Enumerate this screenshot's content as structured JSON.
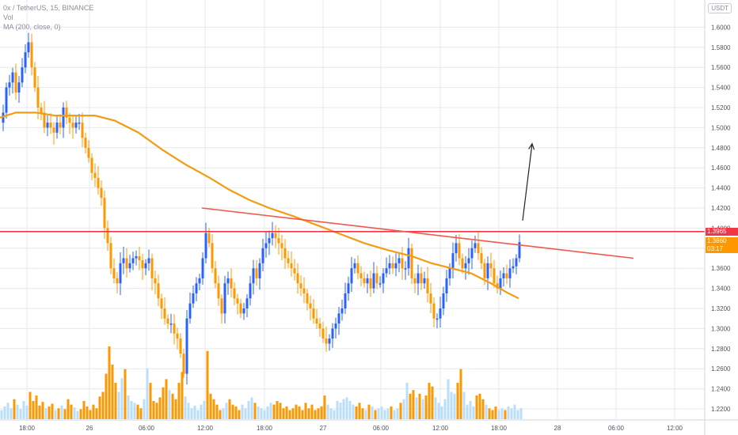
{
  "header": {
    "symbol_line": "0x / TetherUS, 15, BINANCE",
    "vol_label": "Vol",
    "ma_label": "MA (200, close, 0)"
  },
  "currency_badge": "USDT",
  "badges": {
    "resistance_price": "1.3965",
    "last_price": "1.3860",
    "countdown": "03:17"
  },
  "colors": {
    "up": "#2962ff",
    "down": "#ff9800",
    "ma": "#f39c12",
    "trend": "#f0584e",
    "resistance": "#f23645",
    "vol_up": "#bbdefb",
    "vol_down": "#ff9800",
    "grid": "#e6e8ec",
    "arrow": "#222222"
  },
  "chart_data": {
    "type": "candlestick",
    "y_ticks": [
      "1.2200",
      "1.2400",
      "1.2600",
      "1.2800",
      "1.3000",
      "1.3200",
      "1.3400",
      "1.3600",
      "1.3800",
      "1.4000",
      "1.4200",
      "1.4400",
      "1.4600",
      "1.4800",
      "1.5000",
      "1.5200",
      "1.5400",
      "1.5600",
      "1.5800",
      "1.6000"
    ],
    "ylim": [
      1.208,
      1.632
    ],
    "x_ticks": [
      "18:00",
      "26",
      "06:00",
      "12:00",
      "18:00",
      "27",
      "06:00",
      "12:00",
      "18:00",
      "28",
      "06:00",
      "12:00"
    ],
    "price_path": [
      [
        0,
        1.505
      ],
      [
        4,
        1.515
      ],
      [
        8,
        1.54
      ],
      [
        12,
        1.545
      ],
      [
        16,
        1.555
      ],
      [
        20,
        1.535
      ],
      [
        24,
        1.545
      ],
      [
        28,
        1.56
      ],
      [
        32,
        1.575
      ],
      [
        36,
        1.585
      ],
      [
        40,
        1.56
      ],
      [
        44,
        1.54
      ],
      [
        48,
        1.52
      ],
      [
        52,
        1.515
      ],
      [
        56,
        1.5
      ],
      [
        60,
        1.505
      ],
      [
        64,
        1.5
      ],
      [
        68,
        1.495
      ],
      [
        72,
        1.505
      ],
      [
        76,
        1.5
      ],
      [
        80,
        1.52
      ],
      [
        84,
        1.51
      ],
      [
        88,
        1.505
      ],
      [
        92,
        1.5
      ],
      [
        96,
        1.505
      ],
      [
        100,
        1.505
      ],
      [
        104,
        1.49
      ],
      [
        108,
        1.48
      ],
      [
        112,
        1.47
      ],
      [
        116,
        1.455
      ],
      [
        120,
        1.45
      ],
      [
        124,
        1.44
      ],
      [
        128,
        1.43
      ],
      [
        132,
        1.4
      ],
      [
        136,
        1.385
      ],
      [
        140,
        1.36
      ],
      [
        144,
        1.35
      ],
      [
        148,
        1.345
      ],
      [
        152,
        1.365
      ],
      [
        156,
        1.37
      ],
      [
        160,
        1.36
      ],
      [
        164,
        1.365
      ],
      [
        168,
        1.37
      ],
      [
        172,
        1.372
      ],
      [
        176,
        1.368
      ],
      [
        180,
        1.36
      ],
      [
        184,
        1.365
      ],
      [
        188,
        1.37
      ],
      [
        192,
        1.35
      ],
      [
        196,
        1.345
      ],
      [
        200,
        1.33
      ],
      [
        204,
        1.32
      ],
      [
        208,
        1.31
      ],
      [
        212,
        1.305
      ],
      [
        216,
        1.305
      ],
      [
        220,
        1.295
      ],
      [
        224,
        1.29
      ],
      [
        228,
        1.275
      ],
      [
        232,
        1.255
      ],
      [
        236,
        1.31
      ],
      [
        240,
        1.325
      ],
      [
        244,
        1.335
      ],
      [
        248,
        1.345
      ],
      [
        252,
        1.35
      ],
      [
        256,
        1.37
      ],
      [
        260,
        1.395
      ],
      [
        264,
        1.385
      ],
      [
        268,
        1.36
      ],
      [
        272,
        1.345
      ],
      [
        276,
        1.33
      ],
      [
        280,
        1.315
      ],
      [
        284,
        1.345
      ],
      [
        288,
        1.35
      ],
      [
        292,
        1.34
      ],
      [
        296,
        1.33
      ],
      [
        300,
        1.325
      ],
      [
        304,
        1.315
      ],
      [
        308,
        1.32
      ],
      [
        312,
        1.33
      ],
      [
        316,
        1.345
      ],
      [
        320,
        1.36
      ],
      [
        324,
        1.35
      ],
      [
        328,
        1.365
      ],
      [
        332,
        1.38
      ],
      [
        336,
        1.385
      ],
      [
        340,
        1.39
      ],
      [
        344,
        1.395
      ],
      [
        348,
        1.39
      ],
      [
        352,
        1.385
      ],
      [
        356,
        1.38
      ],
      [
        360,
        1.37
      ],
      [
        364,
        1.365
      ],
      [
        368,
        1.36
      ],
      [
        372,
        1.355
      ],
      [
        376,
        1.345
      ],
      [
        380,
        1.34
      ],
      [
        384,
        1.335
      ],
      [
        388,
        1.325
      ],
      [
        392,
        1.32
      ],
      [
        396,
        1.31
      ],
      [
        400,
        1.305
      ],
      [
        404,
        1.3
      ],
      [
        408,
        1.29
      ],
      [
        412,
        1.285
      ],
      [
        416,
        1.29
      ],
      [
        420,
        1.3
      ],
      [
        424,
        1.305
      ],
      [
        428,
        1.315
      ],
      [
        432,
        1.32
      ],
      [
        436,
        1.335
      ],
      [
        440,
        1.345
      ],
      [
        444,
        1.36
      ],
      [
        448,
        1.365
      ],
      [
        452,
        1.355
      ],
      [
        456,
        1.35
      ],
      [
        460,
        1.345
      ],
      [
        464,
        1.35
      ],
      [
        468,
        1.34
      ],
      [
        472,
        1.355
      ],
      [
        476,
        1.345
      ],
      [
        480,
        1.345
      ],
      [
        484,
        1.355
      ],
      [
        488,
        1.36
      ],
      [
        492,
        1.365
      ],
      [
        496,
        1.36
      ],
      [
        500,
        1.365
      ],
      [
        504,
        1.37
      ],
      [
        508,
        1.36
      ],
      [
        512,
        1.36
      ],
      [
        516,
        1.38
      ],
      [
        520,
        1.35
      ],
      [
        524,
        1.345
      ],
      [
        528,
        1.355
      ],
      [
        532,
        1.345
      ],
      [
        536,
        1.35
      ],
      [
        540,
        1.335
      ],
      [
        544,
        1.325
      ],
      [
        548,
        1.31
      ],
      [
        552,
        1.31
      ],
      [
        556,
        1.32
      ],
      [
        560,
        1.335
      ],
      [
        564,
        1.35
      ],
      [
        568,
        1.36
      ],
      [
        572,
        1.375
      ],
      [
        576,
        1.385
      ],
      [
        580,
        1.37
      ],
      [
        584,
        1.36
      ],
      [
        588,
        1.365
      ],
      [
        592,
        1.37
      ],
      [
        596,
        1.38
      ],
      [
        600,
        1.385
      ],
      [
        604,
        1.375
      ],
      [
        608,
        1.365
      ],
      [
        612,
        1.35
      ],
      [
        616,
        1.365
      ],
      [
        620,
        1.36
      ],
      [
        624,
        1.345
      ],
      [
        628,
        1.34
      ],
      [
        632,
        1.35
      ],
      [
        636,
        1.355
      ],
      [
        640,
        1.35
      ],
      [
        644,
        1.36
      ],
      [
        648,
        1.362
      ],
      [
        652,
        1.37
      ],
      [
        656,
        1.386
      ]
    ],
    "ma_path": [
      [
        0,
        1.51
      ],
      [
        20,
        1.515
      ],
      [
        45,
        1.515
      ],
      [
        70,
        1.512
      ],
      [
        95,
        1.512
      ],
      [
        120,
        1.512
      ],
      [
        145,
        1.507
      ],
      [
        175,
        1.495
      ],
      [
        205,
        1.478
      ],
      [
        235,
        1.463
      ],
      [
        265,
        1.45
      ],
      [
        290,
        1.438
      ],
      [
        315,
        1.428
      ],
      [
        340,
        1.42
      ],
      [
        370,
        1.412
      ],
      [
        400,
        1.403
      ],
      [
        430,
        1.394
      ],
      [
        460,
        1.385
      ],
      [
        490,
        1.378
      ],
      [
        520,
        1.372
      ],
      [
        545,
        1.365
      ],
      [
        570,
        1.36
      ],
      [
        595,
        1.355
      ],
      [
        620,
        1.345
      ],
      [
        640,
        1.336
      ],
      [
        655,
        1.33
      ]
    ],
    "trend_line": [
      [
        255,
        1.42
      ],
      [
        800,
        1.37
      ]
    ],
    "resistance_level": 1.3965,
    "arrow": {
      "from": [
        660,
        1.4075
      ],
      "to": [
        672,
        1.484
      ]
    },
    "volume": [
      [
        2,
        10
      ],
      [
        6,
        14
      ],
      [
        10,
        18
      ],
      [
        14,
        12
      ],
      [
        18,
        22
      ],
      [
        22,
        16
      ],
      [
        26,
        11
      ],
      [
        30,
        20
      ],
      [
        34,
        15
      ],
      [
        38,
        30
      ],
      [
        42,
        20
      ],
      [
        46,
        26
      ],
      [
        50,
        15
      ],
      [
        54,
        19
      ],
      [
        58,
        12
      ],
      [
        62,
        14
      ],
      [
        66,
        17
      ],
      [
        70,
        10
      ],
      [
        74,
        12
      ],
      [
        78,
        15
      ],
      [
        82,
        11
      ],
      [
        86,
        22
      ],
      [
        90,
        16
      ],
      [
        94,
        13
      ],
      [
        98,
        9
      ],
      [
        102,
        11
      ],
      [
        106,
        20
      ],
      [
        110,
        14
      ],
      [
        114,
        10
      ],
      [
        118,
        16
      ],
      [
        122,
        12
      ],
      [
        126,
        25
      ],
      [
        130,
        30
      ],
      [
        134,
        50
      ],
      [
        138,
        80
      ],
      [
        142,
        60
      ],
      [
        146,
        40
      ],
      [
        150,
        30
      ],
      [
        154,
        45
      ],
      [
        158,
        55
      ],
      [
        162,
        26
      ],
      [
        166,
        20
      ],
      [
        170,
        18
      ],
      [
        174,
        16
      ],
      [
        178,
        12
      ],
      [
        182,
        22
      ],
      [
        186,
        56
      ],
      [
        190,
        40
      ],
      [
        194,
        20
      ],
      [
        198,
        18
      ],
      [
        202,
        24
      ],
      [
        206,
        35
      ],
      [
        210,
        44
      ],
      [
        214,
        32
      ],
      [
        218,
        28
      ],
      [
        222,
        22
      ],
      [
        226,
        40
      ],
      [
        230,
        52
      ],
      [
        234,
        25
      ],
      [
        238,
        18
      ],
      [
        242,
        12
      ],
      [
        246,
        15
      ],
      [
        250,
        10
      ],
      [
        254,
        16
      ],
      [
        258,
        20
      ],
      [
        262,
        75
      ],
      [
        266,
        28
      ],
      [
        270,
        22
      ],
      [
        274,
        16
      ],
      [
        278,
        10
      ],
      [
        282,
        12
      ],
      [
        286,
        18
      ],
      [
        290,
        22
      ],
      [
        294,
        16
      ],
      [
        298,
        14
      ],
      [
        302,
        10
      ],
      [
        306,
        16
      ],
      [
        310,
        12
      ],
      [
        314,
        20
      ],
      [
        318,
        24
      ],
      [
        322,
        18
      ],
      [
        326,
        14
      ],
      [
        330,
        12
      ],
      [
        334,
        10
      ],
      [
        338,
        14
      ],
      [
        342,
        18
      ],
      [
        346,
        16
      ],
      [
        350,
        20
      ],
      [
        354,
        18
      ],
      [
        358,
        12
      ],
      [
        362,
        14
      ],
      [
        366,
        10
      ],
      [
        370,
        12
      ],
      [
        374,
        16
      ],
      [
        378,
        14
      ],
      [
        382,
        10
      ],
      [
        386,
        18
      ],
      [
        390,
        12
      ],
      [
        394,
        16
      ],
      [
        398,
        10
      ],
      [
        402,
        12
      ],
      [
        406,
        14
      ],
      [
        410,
        26
      ],
      [
        414,
        16
      ],
      [
        418,
        12
      ],
      [
        422,
        10
      ],
      [
        426,
        20
      ],
      [
        430,
        18
      ],
      [
        434,
        22
      ],
      [
        438,
        24
      ],
      [
        442,
        20
      ],
      [
        446,
        16
      ],
      [
        450,
        14
      ],
      [
        454,
        18
      ],
      [
        458,
        12
      ],
      [
        462,
        10
      ],
      [
        466,
        16
      ],
      [
        470,
        14
      ],
      [
        474,
        10
      ],
      [
        478,
        12
      ],
      [
        482,
        14
      ],
      [
        486,
        10
      ],
      [
        490,
        12
      ],
      [
        494,
        14
      ],
      [
        498,
        10
      ],
      [
        502,
        12
      ],
      [
        506,
        18
      ],
      [
        510,
        22
      ],
      [
        514,
        40
      ],
      [
        518,
        28
      ],
      [
        522,
        32
      ],
      [
        526,
        24
      ],
      [
        530,
        28
      ],
      [
        534,
        22
      ],
      [
        538,
        26
      ],
      [
        542,
        40
      ],
      [
        546,
        36
      ],
      [
        550,
        24
      ],
      [
        554,
        18
      ],
      [
        558,
        14
      ],
      [
        562,
        22
      ],
      [
        566,
        44
      ],
      [
        570,
        30
      ],
      [
        574,
        28
      ],
      [
        578,
        40
      ],
      [
        582,
        55
      ],
      [
        586,
        30
      ],
      [
        590,
        16
      ],
      [
        594,
        20
      ],
      [
        598,
        14
      ],
      [
        602,
        26
      ],
      [
        606,
        28
      ],
      [
        610,
        22
      ],
      [
        614,
        16
      ],
      [
        618,
        12
      ],
      [
        622,
        10
      ],
      [
        626,
        14
      ],
      [
        630,
        10
      ],
      [
        634,
        12
      ],
      [
        638,
        10
      ],
      [
        642,
        14
      ],
      [
        646,
        12
      ],
      [
        650,
        16
      ],
      [
        654,
        10
      ],
      [
        658,
        12
      ]
    ]
  }
}
